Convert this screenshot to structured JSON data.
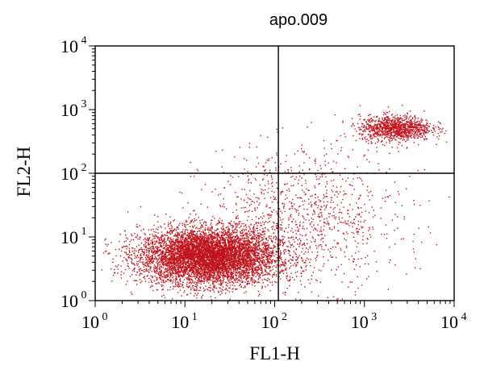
{
  "chart_data": {
    "type": "scatter",
    "title": "apo.009",
    "xlabel": "FL1-H",
    "ylabel": "FL2-H",
    "x_scale": "log",
    "y_scale": "log",
    "xlim": [
      1,
      10000
    ],
    "ylim": [
      1,
      10000
    ],
    "x_ticks": [
      {
        "base": "10",
        "exp": "0",
        "value": 1
      },
      {
        "base": "10",
        "exp": "1",
        "value": 10
      },
      {
        "base": "10",
        "exp": "2",
        "value": 100
      },
      {
        "base": "10",
        "exp": "3",
        "value": 1000
      },
      {
        "base": "10",
        "exp": "4",
        "value": 10000
      }
    ],
    "y_ticks": [
      {
        "base": "10",
        "exp": "0",
        "value": 1
      },
      {
        "base": "10",
        "exp": "1",
        "value": 10
      },
      {
        "base": "10",
        "exp": "2",
        "value": 100
      },
      {
        "base": "10",
        "exp": "3",
        "value": 1000
      },
      {
        "base": "10",
        "exp": "4",
        "value": 10000
      }
    ],
    "quadrant_gates": {
      "x": 110,
      "y": 100
    },
    "point_color": "#c0121b",
    "populations": [
      {
        "center_x": 18,
        "center_y": 5,
        "spread_log_x": 0.38,
        "spread_log_y": 0.22,
        "count": 7000
      },
      {
        "center_x": 2200,
        "center_y": 520,
        "spread_log_x": 0.2,
        "spread_log_y": 0.1,
        "count": 1100
      },
      {
        "center_x": 200,
        "center_y": 20,
        "spread_log_x": 0.55,
        "spread_log_y": 0.55,
        "count": 1100
      }
    ],
    "grid": false,
    "legend": "none"
  }
}
